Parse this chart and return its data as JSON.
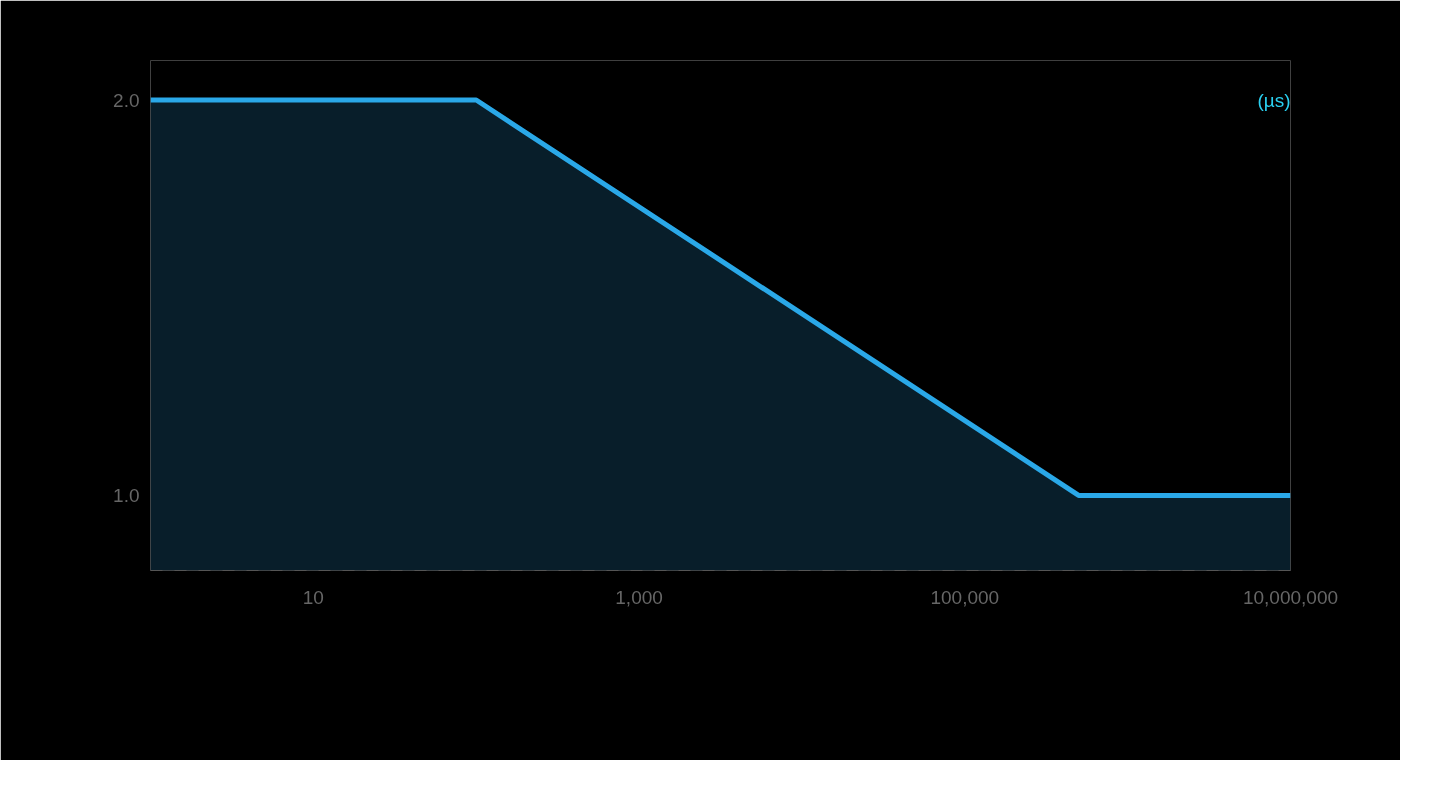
{
  "chart_data": {
    "type": "area",
    "ylabel": "(µs)",
    "x": [
      1,
      100,
      500000,
      10000000
    ],
    "series": [
      {
        "color": "#2aa8e8",
        "values": [
          2.0,
          2.0,
          1.0,
          1.0
        ]
      }
    ],
    "log": "x",
    "xlim": [
      1,
      10000000
    ],
    "xticks": [
      {
        "value": 10,
        "label": "10"
      },
      {
        "value": 1000,
        "label": "1,000"
      },
      {
        "value": 100000,
        "label": "100,000"
      },
      {
        "value": 10000000,
        "label": "10,000,000"
      }
    ],
    "ylim": [
      0.81,
      2.1
    ],
    "yticks": [
      {
        "value": 1,
        "label": "1.0"
      },
      {
        "value": 2,
        "label": "2.0"
      }
    ],
    "grid": false,
    "marker": "none",
    "line_style": "solid"
  }
}
